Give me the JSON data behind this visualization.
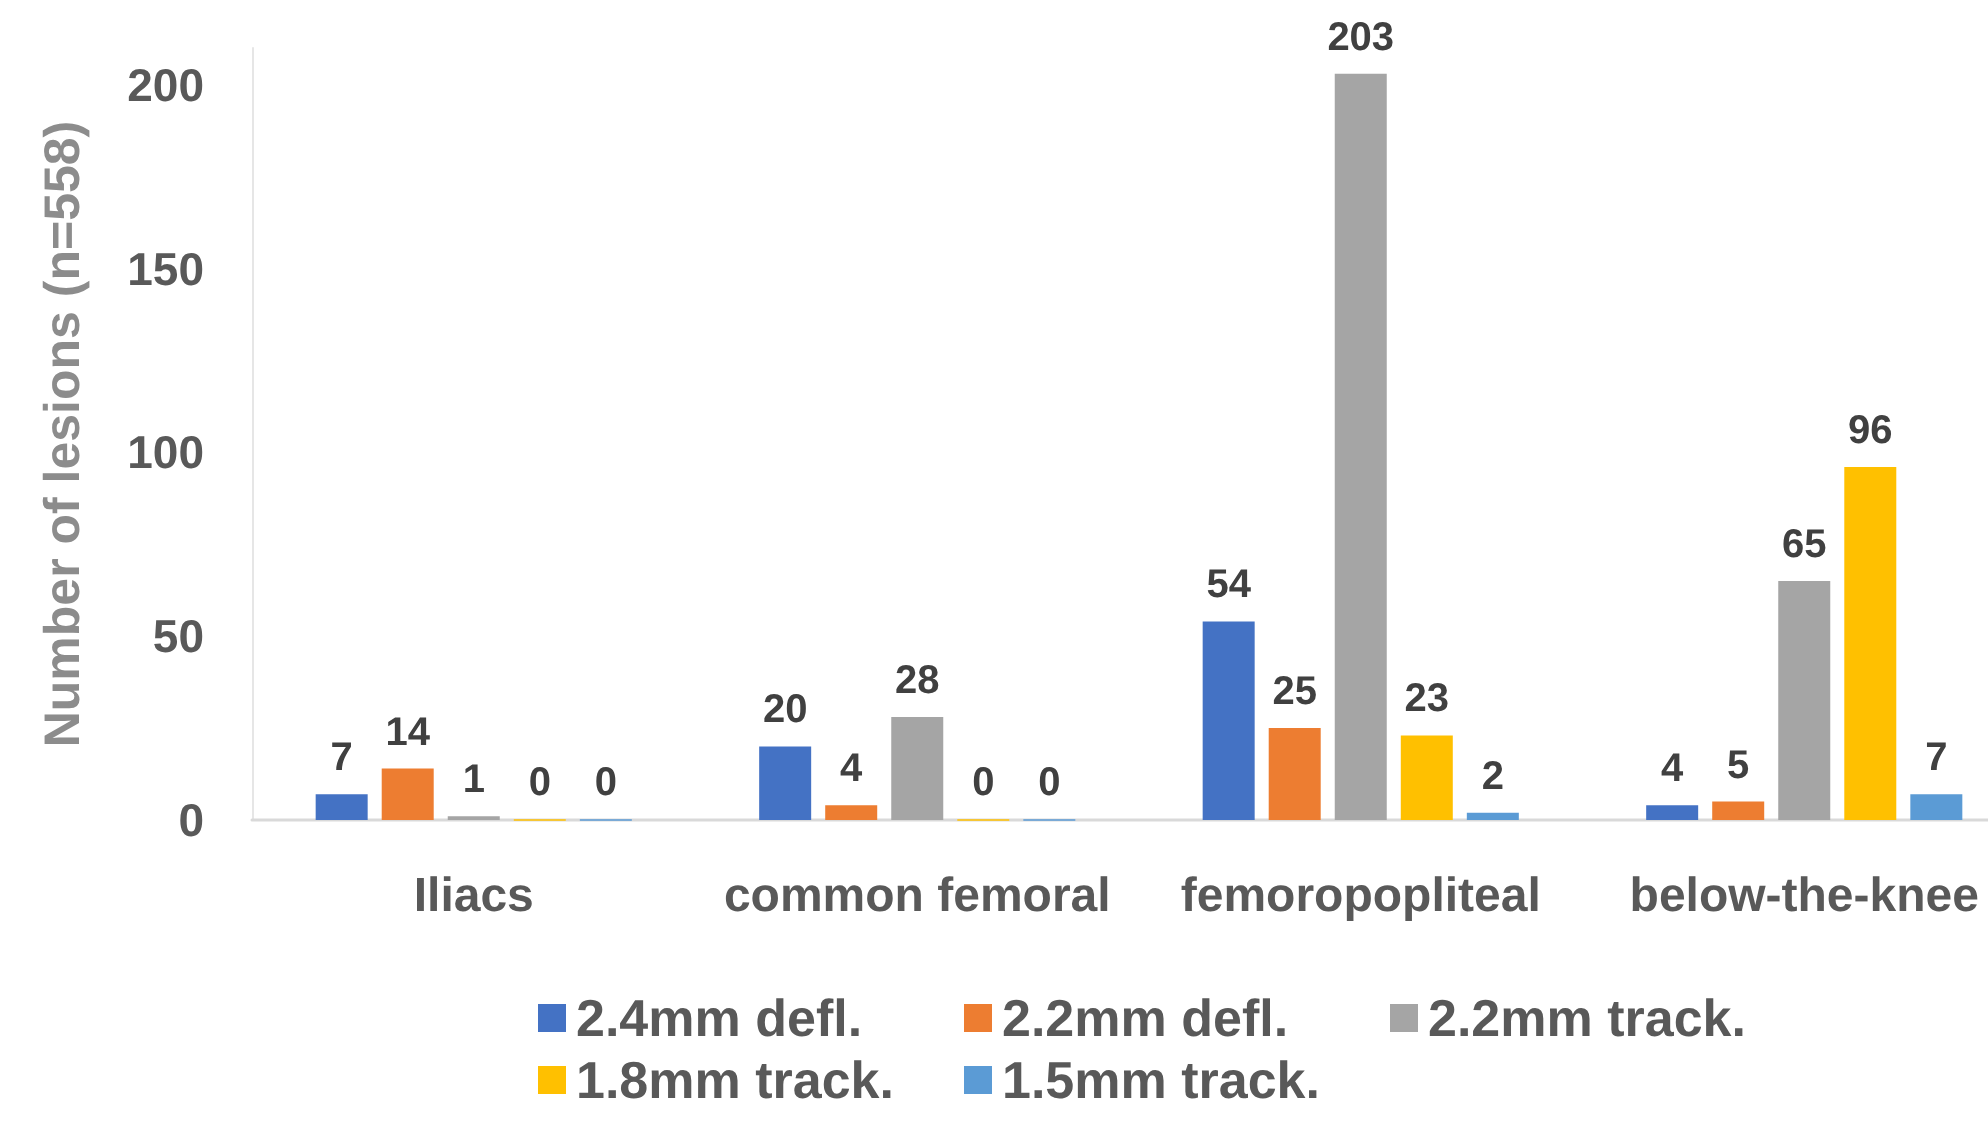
{
  "chart_data": {
    "type": "bar",
    "categories": [
      "Iliacs",
      "common femoral",
      "femoropopliteal",
      "below-the-knee"
    ],
    "series": [
      {
        "name": "2.4mm defl.",
        "color": "#4472c4",
        "values": [
          7,
          20,
          54,
          4
        ]
      },
      {
        "name": "2.2mm defl.",
        "color": "#ed7d31",
        "values": [
          14,
          4,
          25,
          5
        ]
      },
      {
        "name": "2.2mm track.",
        "color": "#a5a5a5",
        "values": [
          1,
          28,
          203,
          65
        ]
      },
      {
        "name": "1.8mm track.",
        "color": "#ffc000",
        "values": [
          0,
          0,
          23,
          96
        ]
      },
      {
        "name": "1.5mm track.",
        "color": "#5b9bd5",
        "values": [
          0,
          0,
          2,
          7
        ]
      }
    ],
    "ylabel": "Number of lesions (n=558)",
    "ylim": [
      0,
      210
    ],
    "yticks": [
      0,
      50,
      100,
      150,
      200
    ],
    "data_labels": true,
    "grid": false,
    "legend": "bottom"
  }
}
